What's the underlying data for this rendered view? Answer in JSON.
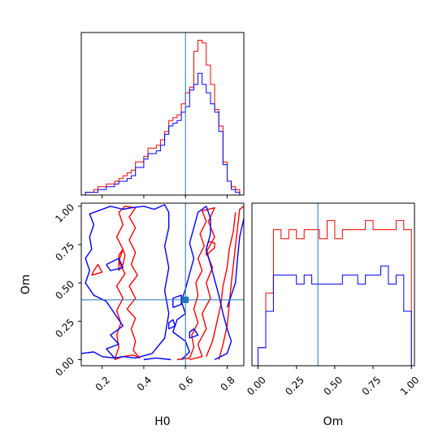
{
  "chart_data": {
    "type": "corner",
    "truth": {
      "H0": 0.6,
      "Om": 0.39
    },
    "truth_color": "#1f77b4",
    "series": [
      {
        "color": "#ff0000"
      },
      {
        "color": "#0000ff"
      }
    ],
    "hist_H0": {
      "title": "",
      "xlim": [
        0.1,
        0.88
      ],
      "bin_edges": [
        0.12,
        0.14,
        0.16,
        0.18,
        0.2,
        0.22,
        0.24,
        0.26,
        0.28,
        0.3,
        0.32,
        0.34,
        0.36,
        0.38,
        0.4,
        0.42,
        0.44,
        0.46,
        0.48,
        0.5,
        0.52,
        0.54,
        0.56,
        0.58,
        0.6,
        0.62,
        0.64,
        0.66,
        0.68,
        0.7,
        0.72,
        0.74,
        0.76,
        0.78,
        0.8,
        0.82,
        0.84,
        0.86
      ],
      "counts_red": [
        1,
        1,
        2,
        3,
        3,
        4,
        4,
        5,
        6,
        7,
        8,
        9,
        12,
        12,
        14,
        17,
        17,
        18,
        20,
        23,
        27,
        28,
        29,
        33,
        37,
        39,
        52,
        56,
        55,
        47,
        40,
        31,
        25,
        12,
        5,
        3,
        2
      ],
      "counts_blue": [
        1,
        1,
        1,
        2,
        2,
        3,
        3,
        4,
        5,
        5,
        6,
        7,
        10,
        10,
        13,
        15,
        15,
        16,
        18,
        22,
        25,
        26,
        27,
        30,
        32,
        38,
        40,
        44,
        40,
        37,
        33,
        30,
        23,
        11,
        5,
        2,
        1
      ]
    },
    "hist_Om": {
      "xlabel": "Om",
      "xlim": [
        -0.04,
        1.02
      ],
      "xticks": [
        "0.00",
        "0.25",
        "0.50",
        "0.75",
        "1.00"
      ],
      "xtick_values": [
        0,
        0.25,
        0.5,
        0.75,
        1.0
      ],
      "bin_edges": [
        0.0,
        0.05,
        0.1,
        0.15,
        0.2,
        0.25,
        0.3,
        0.35,
        0.4,
        0.45,
        0.5,
        0.55,
        0.6,
        0.65,
        0.7,
        0.75,
        0.8,
        0.85,
        0.9,
        0.95,
        1.0
      ],
      "counts_red": [
        2,
        8,
        15,
        14,
        15,
        14,
        15,
        15,
        14,
        16,
        14,
        15,
        15,
        15,
        16,
        15,
        15,
        15,
        16,
        15
      ],
      "counts_blue": [
        2,
        6,
        10,
        10,
        10,
        9,
        10,
        9,
        9,
        9,
        9,
        10,
        10,
        9,
        10,
        10,
        11,
        9,
        10,
        6
      ]
    },
    "contour": {
      "xlabel": "H0",
      "ylabel": "Om",
      "xlim": [
        0.1,
        0.88
      ],
      "ylim": [
        -0.04,
        1.02
      ],
      "xticks": [
        "0.2",
        "0.4",
        "0.6",
        "0.8"
      ],
      "xtick_values": [
        0.2,
        0.4,
        0.6,
        0.8
      ],
      "yticks": [
        "0.00",
        "0.25",
        "0.50",
        "0.75",
        "1.00"
      ],
      "ytick_values": [
        0,
        0.25,
        0.5,
        0.75,
        1.0
      ],
      "contours_red": [
        [
          [
            0.26,
            0.0
          ],
          [
            0.3,
            0.02
          ],
          [
            0.35,
            0.03
          ],
          [
            0.38,
            0.01
          ],
          [
            0.35,
            0.06
          ],
          [
            0.36,
            0.12
          ],
          [
            0.34,
            0.2
          ],
          [
            0.36,
            0.27
          ],
          [
            0.32,
            0.33
          ],
          [
            0.36,
            0.4
          ],
          [
            0.33,
            0.48
          ],
          [
            0.37,
            0.55
          ],
          [
            0.34,
            0.62
          ],
          [
            0.36,
            0.7
          ],
          [
            0.33,
            0.78
          ],
          [
            0.36,
            0.86
          ],
          [
            0.33,
            0.93
          ],
          [
            0.36,
            0.99
          ],
          [
            0.31,
            1.0
          ],
          [
            0.28,
            0.96
          ],
          [
            0.3,
            0.88
          ],
          [
            0.27,
            0.8
          ],
          [
            0.3,
            0.72
          ],
          [
            0.28,
            0.64
          ],
          [
            0.31,
            0.56
          ],
          [
            0.27,
            0.48
          ],
          [
            0.3,
            0.4
          ],
          [
            0.27,
            0.32
          ],
          [
            0.29,
            0.24
          ],
          [
            0.27,
            0.16
          ],
          [
            0.28,
            0.08
          ],
          [
            0.26,
            0.0
          ]
        ],
        [
          [
            0.56,
            0.0
          ],
          [
            0.62,
            0.01
          ],
          [
            0.64,
            0.08
          ],
          [
            0.63,
            0.16
          ],
          [
            0.66,
            0.24
          ],
          [
            0.64,
            0.33
          ],
          [
            0.66,
            0.42
          ],
          [
            0.65,
            0.5
          ],
          [
            0.68,
            0.58
          ],
          [
            0.66,
            0.66
          ],
          [
            0.69,
            0.74
          ],
          [
            0.67,
            0.82
          ],
          [
            0.7,
            0.9
          ],
          [
            0.68,
            0.97
          ],
          [
            0.74,
            0.99
          ],
          [
            0.71,
            0.9
          ],
          [
            0.74,
            0.8
          ],
          [
            0.7,
            0.7
          ],
          [
            0.73,
            0.6
          ],
          [
            0.7,
            0.5
          ],
          [
            0.72,
            0.4
          ],
          [
            0.68,
            0.3
          ],
          [
            0.7,
            0.2
          ],
          [
            0.66,
            0.1
          ],
          [
            0.68,
            0.02
          ],
          [
            0.62,
            0.0
          ]
        ],
        [
          [
            0.76,
            0.0
          ],
          [
            0.78,
            0.1
          ],
          [
            0.8,
            0.22
          ],
          [
            0.81,
            0.36
          ],
          [
            0.82,
            0.5
          ],
          [
            0.83,
            0.62
          ],
          [
            0.84,
            0.74
          ],
          [
            0.85,
            0.86
          ],
          [
            0.86,
            0.98
          ],
          [
            0.88,
            1.0
          ]
        ],
        [
          [
            0.7,
            0.02
          ],
          [
            0.73,
            0.12
          ],
          [
            0.75,
            0.24
          ],
          [
            0.77,
            0.36
          ],
          [
            0.78,
            0.48
          ],
          [
            0.8,
            0.6
          ],
          [
            0.81,
            0.72
          ],
          [
            0.83,
            0.84
          ],
          [
            0.84,
            0.96
          ]
        ],
        [
          [
            0.15,
            0.55
          ],
          [
            0.2,
            0.57
          ],
          [
            0.18,
            0.62
          ],
          [
            0.16,
            0.58
          ],
          [
            0.15,
            0.55
          ]
        ],
        [
          [
            0.28,
            0.58
          ],
          [
            0.3,
            0.62
          ],
          [
            0.31,
            0.68
          ],
          [
            0.3,
            0.72
          ],
          [
            0.28,
            0.68
          ],
          [
            0.28,
            0.58
          ]
        ],
        [
          [
            0.7,
            0.68
          ],
          [
            0.74,
            0.73
          ],
          [
            0.74,
            0.76
          ],
          [
            0.71,
            0.77
          ],
          [
            0.7,
            0.72
          ],
          [
            0.7,
            0.68
          ]
        ]
      ],
      "contours_blue": [
        [
          [
            0.1,
            0.04
          ],
          [
            0.16,
            0.05
          ],
          [
            0.2,
            0.02
          ],
          [
            0.26,
            0.01
          ],
          [
            0.22,
            0.07
          ],
          [
            0.28,
            0.1
          ],
          [
            0.24,
            0.16
          ],
          [
            0.3,
            0.22
          ],
          [
            0.26,
            0.3
          ],
          [
            0.22,
            0.38
          ],
          [
            0.16,
            0.42
          ],
          [
            0.12,
            0.5
          ],
          [
            0.14,
            0.58
          ],
          [
            0.12,
            0.66
          ],
          [
            0.15,
            0.72
          ],
          [
            0.14,
            0.8
          ],
          [
            0.16,
            0.88
          ],
          [
            0.14,
            0.95
          ],
          [
            0.24,
            1.0
          ],
          [
            0.3,
            0.98
          ],
          [
            0.34,
            0.99
          ],
          [
            0.4,
            1.0
          ],
          [
            0.45,
            0.98
          ],
          [
            0.5,
            1.01
          ],
          [
            0.52,
            0.96
          ],
          [
            0.52,
            0.86
          ],
          [
            0.5,
            0.74
          ],
          [
            0.52,
            0.6
          ],
          [
            0.5,
            0.45
          ],
          [
            0.52,
            0.3
          ],
          [
            0.5,
            0.14
          ],
          [
            0.44,
            0.04
          ],
          [
            0.36,
            0.01
          ],
          [
            0.3,
            0.02
          ],
          [
            0.26,
            0.01
          ]
        ],
        [
          [
            0.4,
            0.0
          ],
          [
            0.46,
            0.01
          ],
          [
            0.53,
            0.0
          ]
        ],
        [
          [
            0.22,
            0.62
          ],
          [
            0.28,
            0.66
          ],
          [
            0.3,
            0.6
          ],
          [
            0.24,
            0.58
          ],
          [
            0.22,
            0.62
          ]
        ],
        [
          [
            0.58,
            0.0
          ],
          [
            0.62,
            0.05
          ],
          [
            0.6,
            0.12
          ],
          [
            0.54,
            0.18
          ],
          [
            0.56,
            0.26
          ],
          [
            0.6,
            0.3
          ],
          [
            0.58,
            0.38
          ],
          [
            0.6,
            0.46
          ],
          [
            0.62,
            0.56
          ],
          [
            0.64,
            0.66
          ],
          [
            0.62,
            0.76
          ],
          [
            0.64,
            0.86
          ],
          [
            0.66,
            0.96
          ],
          [
            0.7,
            1.0
          ],
          [
            0.72,
            0.92
          ],
          [
            0.72,
            0.82
          ],
          [
            0.7,
            0.72
          ],
          [
            0.72,
            0.62
          ],
          [
            0.74,
            0.52
          ],
          [
            0.76,
            0.42
          ],
          [
            0.78,
            0.3
          ],
          [
            0.8,
            0.2
          ],
          [
            0.82,
            0.12
          ],
          [
            0.8,
            0.04
          ],
          [
            0.74,
            0.0
          ]
        ],
        [
          [
            0.8,
            0.34
          ],
          [
            0.84,
            0.5
          ],
          [
            0.85,
            0.66
          ],
          [
            0.86,
            0.8
          ],
          [
            0.88,
            0.92
          ]
        ],
        [
          [
            0.54,
            0.34
          ],
          [
            0.58,
            0.36
          ],
          [
            0.58,
            0.42
          ],
          [
            0.54,
            0.4
          ],
          [
            0.54,
            0.34
          ]
        ],
        [
          [
            0.62,
            0.14
          ],
          [
            0.66,
            0.16
          ],
          [
            0.64,
            0.2
          ],
          [
            0.62,
            0.18
          ],
          [
            0.62,
            0.14
          ]
        ],
        [
          [
            0.52,
            0.2
          ],
          [
            0.55,
            0.22
          ],
          [
            0.54,
            0.26
          ],
          [
            0.52,
            0.24
          ],
          [
            0.52,
            0.2
          ]
        ]
      ]
    }
  }
}
